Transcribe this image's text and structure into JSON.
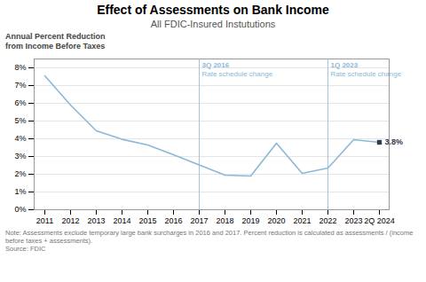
{
  "chart_data": {
    "type": "line",
    "title": "Effect of Assessments on Bank Income",
    "subtitle": "All FDIC-Insured Instututions",
    "ylabel": [
      "Annual Percent Reduction",
      "from Income Before Taxes"
    ],
    "categories": [
      "2011",
      "2012",
      "2013",
      "2014",
      "2015",
      "2016",
      "2017",
      "2018",
      "2019",
      "2020",
      "2021",
      "2022",
      "2023",
      "2Q 2024"
    ],
    "values": [
      7.55,
      5.9,
      4.45,
      3.97,
      3.65,
      3.1,
      2.53,
      1.95,
      1.9,
      3.75,
      2.05,
      2.35,
      3.95,
      3.8
    ],
    "color": "#8ab8d8",
    "ylim": [
      0,
      8.5
    ],
    "yticks": [
      {
        "value": 0,
        "label": "0%"
      },
      {
        "value": 1,
        "label": "1%"
      },
      {
        "value": 2,
        "label": "2%"
      },
      {
        "value": 3,
        "label": "3%"
      },
      {
        "value": 4,
        "label": "4%"
      },
      {
        "value": 5,
        "label": "5%"
      },
      {
        "value": 6,
        "label": "6%"
      },
      {
        "value": 7,
        "label": "7%"
      },
      {
        "value": 8,
        "label": "8%"
      }
    ],
    "grid": true,
    "annotations": [
      {
        "x": "2017",
        "label": "3Q 2016",
        "text": "Rate schedule change",
        "line_style": "solid",
        "color": "#8ab8d8"
      },
      {
        "x": "2022",
        "label": "1Q 2023",
        "text": "Rate schedule change",
        "line_style": "solid",
        "color": "#8ab8d8"
      },
      {
        "x": "2Q 2024",
        "y": 3.8,
        "label": "3.8%",
        "marker": "square",
        "color": "#2c3e50"
      }
    ],
    "note": "Note: Assessments exclude temporary large bank surcharges in 2016 and 2017.  Percent reduction is calculated  as assessments / (income before taxes + assessments).",
    "source": "Source: FDIC"
  }
}
